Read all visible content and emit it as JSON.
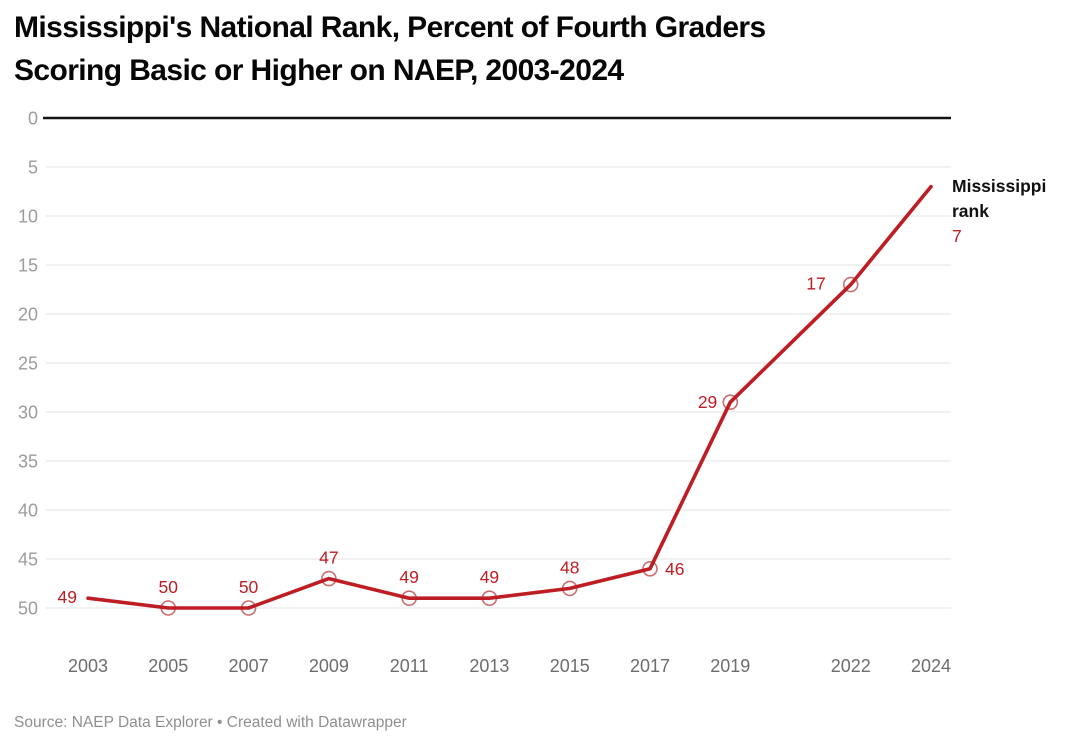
{
  "header": {
    "title": "Mississippi's National Rank, Percent of Fourth Graders Scoring Basic or Higher on NAEP, 2003-2024",
    "title_lines": [
      "Mississippi's National Rank, Percent of Fourth Graders",
      "Scoring Basic or Higher on NAEP, 2003-2024"
    ]
  },
  "legend": {
    "label": "Mississippi rank",
    "last_value": "7"
  },
  "footer": {
    "text": "Source: NAEP Data Explorer • Created with Datawrapper"
  },
  "colors": {
    "line": "#bf1d24",
    "label": "#bf1d24",
    "marker_stroke": "#ca6e70",
    "marker_fill": "#ffffff",
    "grid": "#e3e3e3",
    "zero_line": "#151515",
    "y_tick": "#9c9c9c",
    "x_tick": "#6d6d6d"
  },
  "chart_data": {
    "type": "line",
    "title": "Mississippi's National Rank, Percent of Fourth Graders Scoring Basic or Higher on NAEP, 2003-2024",
    "x": [
      2003,
      2005,
      2007,
      2009,
      2011,
      2013,
      2015,
      2017,
      2019,
      2022,
      2024
    ],
    "x_tick_labels": [
      "2003",
      "2005",
      "2007",
      "2009",
      "2011",
      "2013",
      "2015",
      "2017",
      "2019",
      "2022",
      "2024"
    ],
    "series": [
      {
        "name": "Mississippi rank",
        "values": [
          49,
          50,
          50,
          47,
          49,
          49,
          48,
          46,
          29,
          17,
          7
        ]
      }
    ],
    "point_labels": [
      "49",
      "50",
      "50",
      "47",
      "49",
      "49",
      "48",
      "46",
      "29",
      "17",
      "7"
    ],
    "label_positions": [
      "start_left",
      "above",
      "above",
      "above",
      "above",
      "above",
      "above",
      "right",
      "left",
      "far_left",
      "legend"
    ],
    "y_axis": {
      "ticks": [
        0,
        5,
        10,
        15,
        20,
        25,
        30,
        35,
        40,
        45,
        50
      ],
      "inverted": true,
      "range": [
        0,
        50
      ]
    },
    "xlabel": "",
    "ylabel": "",
    "grid": true,
    "legend_position": "right-of-line-end"
  }
}
